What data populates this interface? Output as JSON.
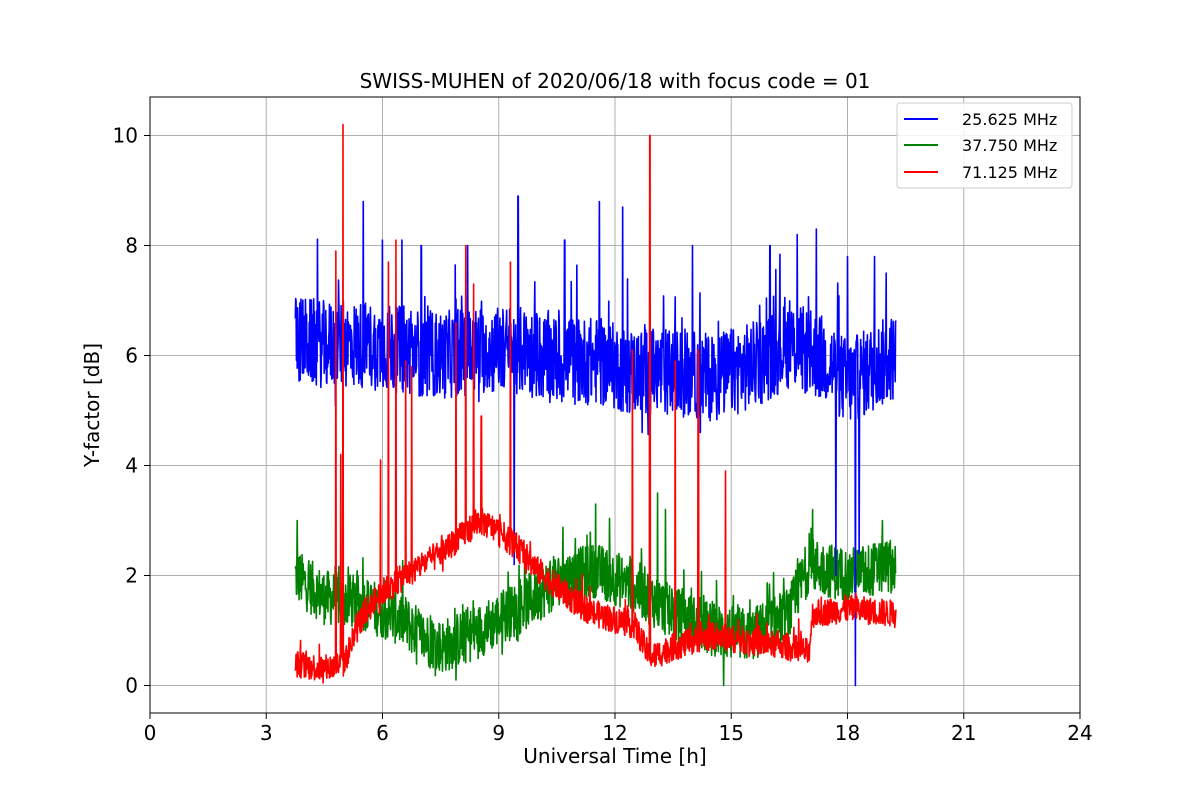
{
  "chart_data": {
    "type": "line",
    "title": "SWISS-MUHEN of 2020/06/18 with focus code = 01",
    "xlabel": "Universal Time [h]",
    "ylabel": "Y-factor [dB]",
    "xlim": [
      0,
      24
    ],
    "ylim": [
      -0.5,
      10.7
    ],
    "x_ticks": [
      0,
      3,
      6,
      9,
      12,
      15,
      18,
      21,
      24
    ],
    "y_ticks": [
      0,
      2,
      4,
      6,
      8,
      10
    ],
    "grid": true,
    "legend_position": "top-right",
    "x_range_data": [
      3.75,
      19.25
    ],
    "series": [
      {
        "name": "25.625 MHz",
        "color": "#0000ff",
        "baseline": [
          [
            3.75,
            6.3
          ],
          [
            4.5,
            6.2
          ],
          [
            5.5,
            6.2
          ],
          [
            6.5,
            6.1
          ],
          [
            7.5,
            6.0
          ],
          [
            8.5,
            6.1
          ],
          [
            9.5,
            6.1
          ],
          [
            10.5,
            5.9
          ],
          [
            11.5,
            5.9
          ],
          [
            12.5,
            5.7
          ],
          [
            13.5,
            5.7
          ],
          [
            14.5,
            5.6
          ],
          [
            15.5,
            5.8
          ],
          [
            16.5,
            6.2
          ],
          [
            17.5,
            5.9
          ],
          [
            18.0,
            5.5
          ],
          [
            19.25,
            6.0
          ]
        ],
        "noise_band": 1.6,
        "peaks": [
          [
            5.5,
            8.8
          ],
          [
            6.0,
            8.1
          ],
          [
            6.5,
            8.1
          ],
          [
            7.0,
            8.0
          ],
          [
            8.2,
            8.0
          ],
          [
            9.5,
            8.9
          ],
          [
            10.7,
            8.1
          ],
          [
            11.6,
            8.8
          ],
          [
            12.2,
            8.7
          ],
          [
            14.0,
            8.0
          ],
          [
            16.0,
            8.0
          ],
          [
            16.7,
            8.2
          ],
          [
            17.2,
            8.3
          ],
          [
            18.0,
            7.8
          ],
          [
            18.7,
            7.8
          ],
          [
            19.0,
            7.5
          ]
        ],
        "dips": [
          [
            17.7,
            2.0
          ],
          [
            18.2,
            0.0
          ],
          [
            18.3,
            2.4
          ],
          [
            9.4,
            2.2
          ],
          [
            12.7,
            4.6
          ],
          [
            14.2,
            4.6
          ]
        ]
      },
      {
        "name": "37.750 MHz",
        "color": "#008000",
        "baseline": [
          [
            3.75,
            2.0
          ],
          [
            4.5,
            1.6
          ],
          [
            5.5,
            1.5
          ],
          [
            6.5,
            1.2
          ],
          [
            7.0,
            0.9
          ],
          [
            7.5,
            0.7
          ],
          [
            8.5,
            1.0
          ],
          [
            9.5,
            1.4
          ],
          [
            10.5,
            1.9
          ],
          [
            11.5,
            2.1
          ],
          [
            12.5,
            1.8
          ],
          [
            13.5,
            1.3
          ],
          [
            14.5,
            1.0
          ],
          [
            15.5,
            0.9
          ],
          [
            16.5,
            1.3
          ],
          [
            17.0,
            2.2
          ],
          [
            18.0,
            2.0
          ],
          [
            19.25,
            2.2
          ]
        ],
        "noise_band": 1.0,
        "peaks": [
          [
            3.8,
            3.0
          ],
          [
            11.5,
            3.3
          ],
          [
            13.1,
            3.5
          ],
          [
            13.3,
            3.2
          ],
          [
            17.1,
            3.2
          ],
          [
            18.9,
            3.0
          ]
        ],
        "dips": [
          [
            14.8,
            0.0
          ],
          [
            7.9,
            0.1
          ]
        ]
      },
      {
        "name": "71.125 MHz",
        "color": "#ff0000",
        "baseline": [
          [
            3.75,
            0.4
          ],
          [
            4.5,
            0.3
          ],
          [
            5.0,
            0.4
          ],
          [
            5.5,
            1.3
          ],
          [
            6.0,
            1.7
          ],
          [
            7.0,
            2.2
          ],
          [
            7.5,
            2.4
          ],
          [
            8.0,
            2.7
          ],
          [
            8.5,
            3.0
          ],
          [
            9.0,
            2.8
          ],
          [
            9.5,
            2.5
          ],
          [
            10.0,
            2.1
          ],
          [
            10.5,
            1.8
          ],
          [
            11.0,
            1.5
          ],
          [
            11.5,
            1.3
          ],
          [
            12.5,
            1.1
          ],
          [
            12.9,
            0.5
          ],
          [
            13.5,
            0.7
          ],
          [
            14.5,
            0.9
          ],
          [
            15.5,
            0.8
          ],
          [
            16.5,
            0.7
          ],
          [
            17.0,
            0.6
          ],
          [
            17.1,
            1.3
          ],
          [
            18.0,
            1.4
          ],
          [
            19.25,
            1.3
          ]
        ],
        "noise_band": 0.5,
        "peaks": [
          [
            4.8,
            7.9
          ],
          [
            4.98,
            10.2
          ],
          [
            4.92,
            4.2
          ],
          [
            5.95,
            4.1
          ],
          [
            6.15,
            7.7
          ],
          [
            6.35,
            8.1
          ],
          [
            6.6,
            5.9
          ],
          [
            6.75,
            5.8
          ],
          [
            7.9,
            6.6
          ],
          [
            8.15,
            8.0
          ],
          [
            8.35,
            7.3
          ],
          [
            8.55,
            4.9
          ],
          [
            9.3,
            7.7
          ],
          [
            12.45,
            6.1
          ],
          [
            12.9,
            10.0
          ],
          [
            13.55,
            5.9
          ],
          [
            14.15,
            6.1
          ],
          [
            14.85,
            3.9
          ]
        ],
        "dips": []
      }
    ]
  }
}
